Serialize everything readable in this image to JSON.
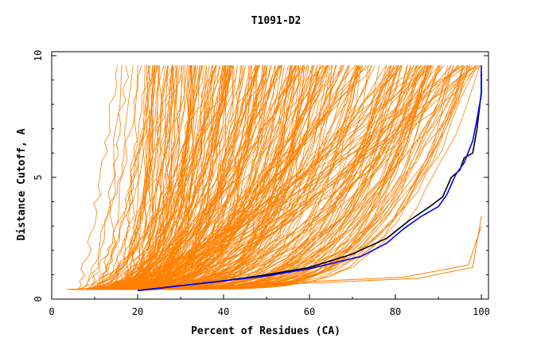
{
  "chart_data": {
    "type": "line",
    "title": "T1091-D2",
    "xlabel": "Percent of Residues (CA)",
    "ylabel": "Distance Cutoff, A",
    "xlim": [
      0,
      100
    ],
    "ylim": [
      0,
      10
    ],
    "x_ticks": [
      "0",
      "20",
      "40",
      "60",
      "80",
      "100"
    ],
    "y_ticks": [
      "0",
      "5",
      "10"
    ],
    "grid": false,
    "colors": {
      "models": "#ff8000",
      "highlight_black": "#000000",
      "highlight_blue": "#0000ff"
    },
    "highlighted_series": [
      {
        "color": "black",
        "points": [
          [
            20,
            0.35
          ],
          [
            30,
            0.55
          ],
          [
            40,
            0.75
          ],
          [
            50,
            1.0
          ],
          [
            60,
            1.3
          ],
          [
            70,
            1.85
          ],
          [
            78,
            2.5
          ],
          [
            83,
            3.2
          ],
          [
            88,
            3.8
          ],
          [
            91,
            4.2
          ],
          [
            93,
            5.0
          ],
          [
            95,
            5.3
          ],
          [
            96,
            5.8
          ],
          [
            98,
            6.0
          ],
          [
            99,
            7.0
          ],
          [
            100,
            8.5
          ],
          [
            100,
            9.3
          ]
        ]
      },
      {
        "color": "blue",
        "points": [
          [
            20,
            0.35
          ],
          [
            30,
            0.55
          ],
          [
            40,
            0.75
          ],
          [
            50,
            0.95
          ],
          [
            60,
            1.25
          ],
          [
            72,
            1.75
          ],
          [
            78,
            2.3
          ],
          [
            82,
            2.9
          ],
          [
            86,
            3.4
          ],
          [
            90,
            3.8
          ],
          [
            92,
            4.3
          ],
          [
            94,
            5.1
          ],
          [
            96,
            5.6
          ],
          [
            98,
            6.5
          ],
          [
            99,
            7.4
          ],
          [
            100,
            8.4
          ],
          [
            100,
            9.6
          ]
        ]
      }
    ],
    "model_curves": {
      "count": 300,
      "description_note": "dense bundle of orange model cumulative curves from ~0.4 A to ~9.6 A"
    }
  }
}
